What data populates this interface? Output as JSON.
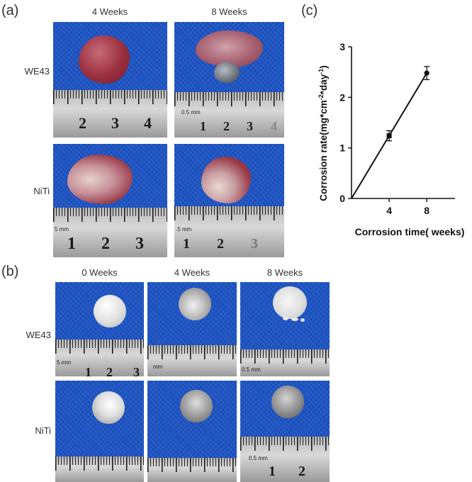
{
  "panel_a": {
    "letter": "(a)",
    "columns": [
      "4 Weeks",
      "8 Weeks"
    ],
    "rows": [
      "WE43",
      "NiTi"
    ],
    "rulers": {
      "we43_4w": {
        "numbers": [
          "2",
          "3",
          "4"
        ],
        "unit": ""
      },
      "we43_8w": {
        "numbers": [
          "1",
          "2",
          "3",
          "4"
        ],
        "unit": "0.5 mm"
      },
      "niti_4w": {
        "numbers": [
          "1",
          "2",
          "3"
        ],
        "unit": "5 mm"
      },
      "niti_8w": {
        "numbers": [
          "1",
          "2",
          "3"
        ],
        "unit": ".5 mm"
      }
    }
  },
  "panel_b": {
    "letter": "(b)",
    "columns": [
      "0 Weeks",
      "4 Weeks",
      "8 Weeks"
    ],
    "rows": [
      "WE43",
      "NiTi"
    ],
    "rulers": {
      "we43_0w": {
        "numbers": [
          "1",
          "2",
          "3"
        ],
        "unit": "5 mm"
      },
      "we43_4w": {
        "numbers": [],
        "unit": "mm"
      },
      "we43_8w": {
        "numbers": [],
        "unit": "0.5 mm"
      },
      "niti_8w": {
        "numbers": [
          "1",
          "2"
        ],
        "unit": "0.5 mm"
      }
    }
  },
  "panel_c": {
    "letter": "(c)"
  },
  "chart_data": {
    "type": "line",
    "title": "",
    "xlabel": "Corrosion time( weeks)",
    "ylabel": "Corrosion rate(mg*cm⁻²*day⁻¹)",
    "x_ticks": [
      "4",
      "8"
    ],
    "y_ticks": [
      "0",
      "1",
      "2",
      "3"
    ],
    "xlim": [
      0,
      11
    ],
    "ylim": [
      0,
      3
    ],
    "series": [
      {
        "x": [
          0,
          4,
          8
        ],
        "y": [
          0,
          1.24,
          2.48
        ],
        "error": [
          0,
          0.1,
          0.13
        ],
        "marker_shapes": [
          "none",
          "square",
          "circle"
        ]
      }
    ],
    "grid": false,
    "legend": "none"
  },
  "colors": {
    "mesh_blue": "#1e55c6",
    "ruler_gray": "#c8c8c8",
    "tissue_red": "#9c3a46",
    "metal_silver": "#d9d9d9",
    "line": "#111111"
  }
}
